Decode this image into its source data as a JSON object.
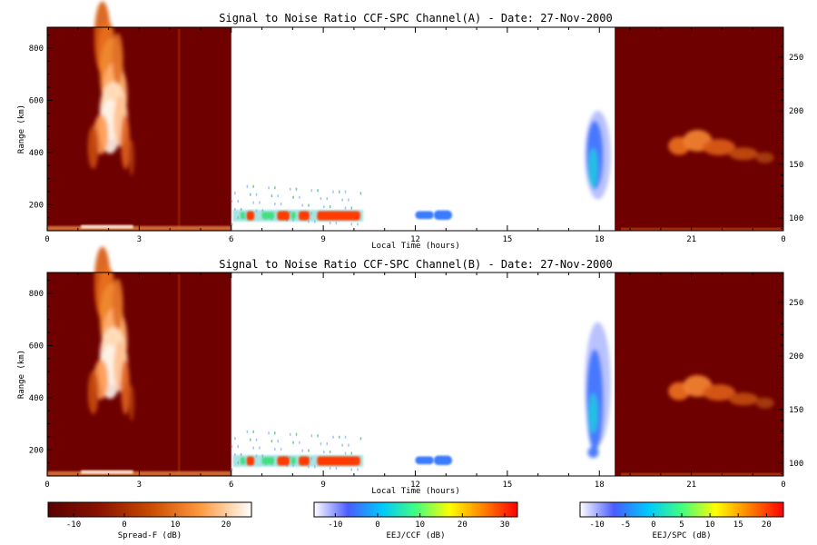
{
  "chart_data": [
    {
      "type": "heatmap",
      "title": "Signal to Noise Ratio CCF-SPC Channel(A) - Date: 27-Nov-2000",
      "xlabel": "Local Time (hours)",
      "ylabel": "Range (km)",
      "x_ticks": [
        "0",
        "3",
        "6",
        "9",
        "12",
        "15",
        "18",
        "21",
        "0"
      ],
      "xlim": [
        0,
        24
      ],
      "y_ticks": [
        200,
        400,
        600,
        800
      ],
      "ylim": [
        100,
        880
      ],
      "y2_ticks": [
        100,
        150,
        200,
        250
      ],
      "y2lim": [
        88,
        278
      ],
      "regions": [
        {
          "scale": "spread_f",
          "x_range": [
            0,
            6
          ]
        },
        {
          "scale": "eej_ccf",
          "x_range": [
            6,
            10.3
          ]
        },
        {
          "scale": "eej_ccf",
          "x_range": [
            12,
            13.2
          ]
        },
        {
          "scale": "eej_spc",
          "x_range": [
            17.5,
            18.7
          ]
        },
        {
          "scale": "spread_f",
          "x_range": [
            18.5,
            24
          ]
        }
      ]
    },
    {
      "type": "heatmap",
      "title": "Signal to Noise Ratio CCF-SPC Channel(B) - Date: 27-Nov-2000",
      "xlabel": "Local Time (hours)",
      "ylabel": "Range (km)",
      "x_ticks": [
        "0",
        "3",
        "6",
        "9",
        "12",
        "15",
        "18",
        "21",
        "0"
      ],
      "xlim": [
        0,
        24
      ],
      "y_ticks": [
        200,
        400,
        600,
        800
      ],
      "ylim": [
        100,
        880
      ],
      "y2_ticks": [
        100,
        150,
        200,
        250
      ],
      "y2lim": [
        88,
        278
      ],
      "regions": [
        {
          "scale": "spread_f",
          "x_range": [
            0,
            6
          ]
        },
        {
          "scale": "eej_ccf",
          "x_range": [
            6,
            10.3
          ]
        },
        {
          "scale": "eej_ccf",
          "x_range": [
            12,
            13.2
          ]
        },
        {
          "scale": "eej_spc",
          "x_range": [
            17.5,
            18.7
          ]
        },
        {
          "scale": "spread_f",
          "x_range": [
            18.5,
            24
          ]
        }
      ]
    }
  ],
  "colorbars": [
    {
      "label": "Spread-F (dB)",
      "range": [
        -15,
        25
      ],
      "ticks": [
        "-10",
        "0",
        "10",
        "20"
      ],
      "stops": [
        "#5a0000",
        "#8a1200",
        "#c84a00",
        "#ff9a40",
        "#ffffff"
      ]
    },
    {
      "label": "EEJ/CCF (dB)",
      "range": [
        -15,
        33
      ],
      "ticks": [
        "-10",
        "0",
        "10",
        "20",
        "30"
      ],
      "stops": [
        "#ffffff",
        "#4a5cff",
        "#00c8ff",
        "#40ff80",
        "#ffff00",
        "#ff8000",
        "#ff0000"
      ]
    },
    {
      "label": "EEJ/SPC (dB)",
      "range": [
        -13,
        23
      ],
      "ticks": [
        "-10",
        "-5",
        "0",
        "5",
        "10",
        "15",
        "20"
      ],
      "stops": [
        "#ffffff",
        "#4a5cff",
        "#00c8ff",
        "#40ff80",
        "#ffff00",
        "#ff8000",
        "#ff0000"
      ]
    }
  ],
  "colors": {
    "spread_f_background": "#6e0000",
    "eej_strong": "#ff3000",
    "eej_weak": "#3a7cff"
  }
}
